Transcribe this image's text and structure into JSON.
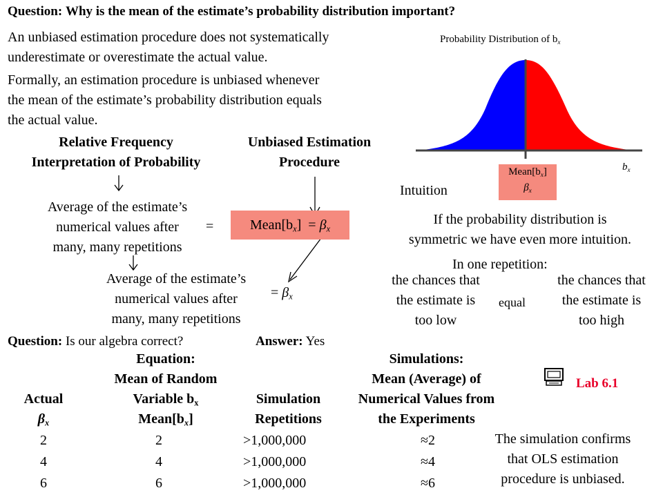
{
  "question_top": {
    "label": "Question:",
    "text": "Why is the mean of the estimate’s probability distribution important?"
  },
  "para1": {
    "line1": "An unbiased estimation procedure does  not systematically",
    "line2": "underestimate or overestimate the actual value."
  },
  "para2": {
    "line1": "Formally, an estimation procedure is unbiased whenever",
    "line2": "the mean of the estimate’s probability distribution equals",
    "line3": "the actual value."
  },
  "dist": {
    "title": "Probability Distribution of b",
    "title_sub": "x",
    "axis_label": "b",
    "axis_sub": "x",
    "mean_label": "Mean[b",
    "mean_sub": "x",
    "mean_close": "]",
    "beta": "β",
    "beta_sub": "x",
    "left_color": "#0000ff",
    "right_color": "#ff0000"
  },
  "col_rel": {
    "line1": "Relative Frequency",
    "line2": "Interpretation of Probability"
  },
  "col_unb": {
    "line1": "Unbiased Estimation",
    "line2": "Procedure"
  },
  "avg1": {
    "line1": "Average of the estimate’s",
    "line2": "numerical values after",
    "line3": "many, many repetitions"
  },
  "equals": "=",
  "mean_box": {
    "pre": "Mean[b",
    "sub": "x",
    "post": "]  = ",
    "beta": "β",
    "beta_sub": "x"
  },
  "avg2": {
    "line1": "Average of the estimate’s",
    "line2": "numerical values after",
    "line3": "many, many repetitions"
  },
  "eq_beta": {
    "eq": "= ",
    "beta": "β",
    "sub": "x"
  },
  "intuition": "Intuition",
  "symmetric": {
    "line1": "If the probability distribution is",
    "line2": "symmetric we have even more intuition."
  },
  "one_rep": "In one repetition:",
  "chance_low": {
    "line1": "the chances that",
    "line2": "the estimate is",
    "line3": "too low"
  },
  "equal": "equal",
  "chance_high": {
    "line1": "the chances that",
    "line2": "the estimate is",
    "line3": "too high"
  },
  "question2": {
    "label": "Question:",
    "text": " Is our algebra correct?",
    "answer_label": "Answer:",
    "answer": " Yes"
  },
  "table": {
    "h_actual": "Actual",
    "h_actual_beta": "β",
    "h_actual_sub": "x",
    "h_eq1": "Equation:",
    "h_eq2": "Mean of Random",
    "h_eq3": "Variable b",
    "h_eq3_sub": "x",
    "h_eq4": "Mean[b",
    "h_eq4_sub": "x",
    "h_eq4_close": "]",
    "h_sim1": "Simulation",
    "h_sim2": "Repetitions",
    "h_s1": "Simulations:",
    "h_s2": "Mean (Average) of",
    "h_s3": "Numerical Values from",
    "h_s4": "the Experiments",
    "rows": [
      {
        "actual": "2",
        "mean": "2",
        "reps": ">1,000,000",
        "sim": "≈2"
      },
      {
        "actual": "4",
        "mean": "4",
        "reps": ">1,000,000",
        "sim": "≈4"
      },
      {
        "actual": "6",
        "mean": "6",
        "reps": ">1,000,000",
        "sim": "≈6"
      }
    ]
  },
  "lab": {
    "icon": "computer-icon",
    "label": "Lab 6.1",
    "color": "#e8002a"
  },
  "conclusion": {
    "line1": "The simulation confirms",
    "line2": "that OLS estimation",
    "line3": "procedure is unbiased."
  }
}
